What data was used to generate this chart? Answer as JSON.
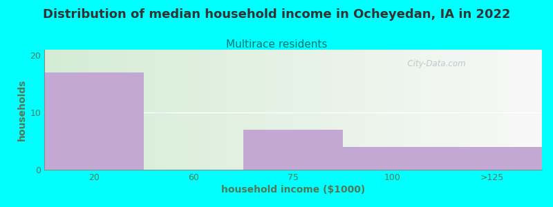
{
  "title": "Distribution of median household income in Ocheyedan, IA in 2022",
  "subtitle": "Multirace residents",
  "xlabel": "household income ($1000)",
  "ylabel": "households",
  "background_color": "#00FFFF",
  "bar_color": "#C4A8D4",
  "categories": [
    "20",
    "60",
    "75",
    "100",
    ">125"
  ],
  "values": [
    17,
    0,
    7,
    4,
    4
  ],
  "yticks": [
    0,
    10,
    20
  ],
  "ylim": [
    0,
    21
  ],
  "title_fontsize": 13,
  "subtitle_fontsize": 11,
  "subtitle_color": "#007070",
  "axis_label_color": "#557755",
  "tick_color": "#557755",
  "watermark": "  City-Data.com",
  "watermark_color": "#aabbc0"
}
